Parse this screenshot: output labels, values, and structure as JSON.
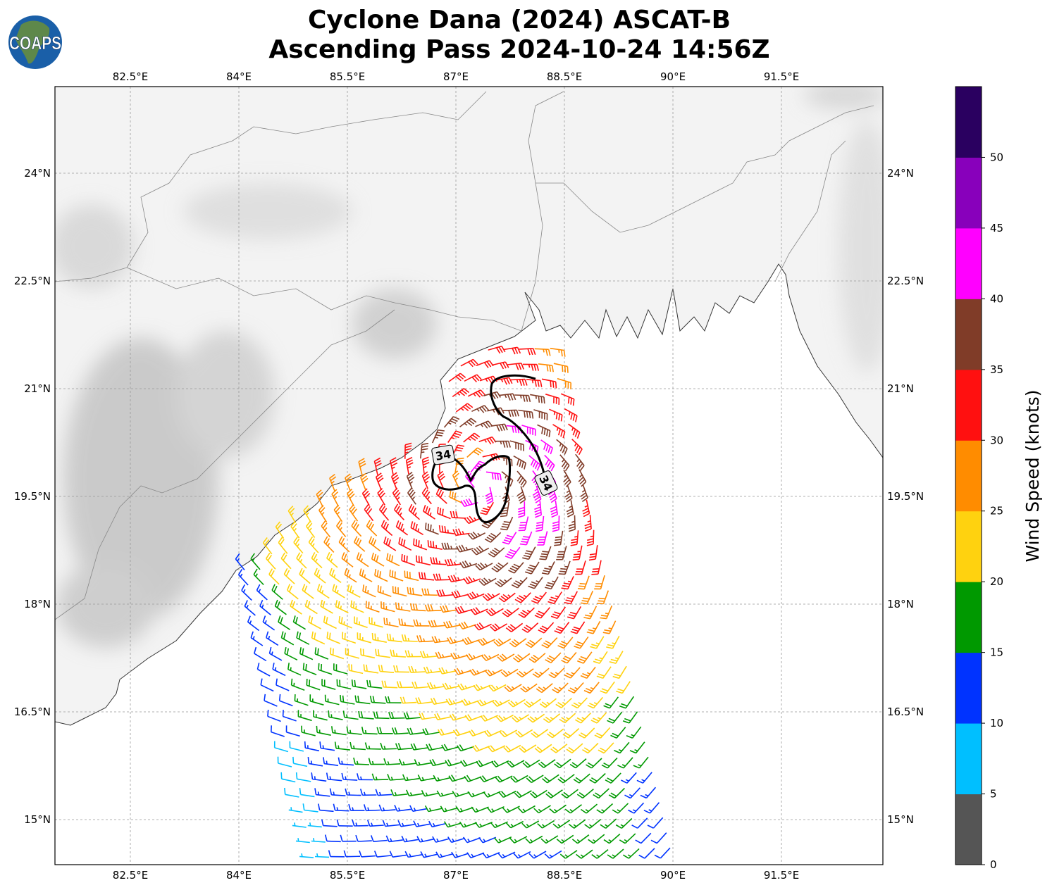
{
  "title": {
    "line1": "Cyclone Dana (2024) ASCAT-B",
    "line2": "Ascending Pass 2024-10-24 14:56Z"
  },
  "logo": {
    "text": "COAPS"
  },
  "map": {
    "lon_ticks": [
      "82.5°E",
      "84°E",
      "85.5°E",
      "87°E",
      "88.5°E",
      "90°E",
      "91.5°E"
    ],
    "lat_ticks": [
      "24°N",
      "22.5°N",
      "21°N",
      "19.5°N",
      "18°N",
      "16.5°N",
      "15°N"
    ],
    "contour_labels": [
      "34",
      "34"
    ]
  },
  "colorbar": {
    "label": "Wind Speed (knots)",
    "ticks": [
      "0",
      "5",
      "10",
      "15",
      "20",
      "25",
      "30",
      "35",
      "40",
      "45",
      "50"
    ],
    "colors": [
      "#555555",
      "#00bfff",
      "#0033ff",
      "#009900",
      "#ffd20f",
      "#ff8c00",
      "#ff1010",
      "#803c28",
      "#ff00ff",
      "#8800bb",
      "#2a0060"
    ]
  }
}
